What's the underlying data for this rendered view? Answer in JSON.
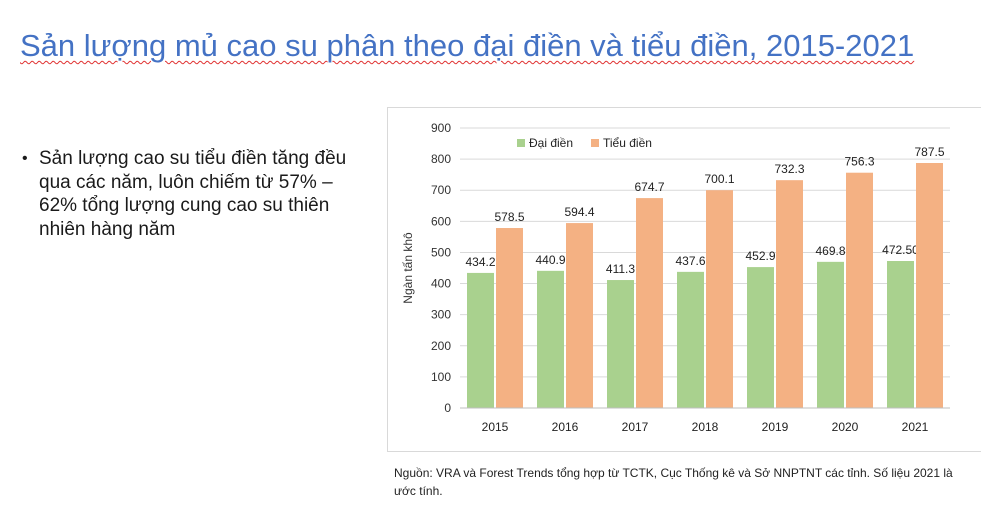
{
  "slide": {
    "title": "Sản lượng mủ cao su phân theo đại điền và tiểu điền, 2015-2021",
    "bullets": [
      "Sản lượng cao su tiểu điền tăng đều qua các năm, luôn chiếm từ 57% – 62% tổng lượng cung cao su thiên nhiên hàng năm"
    ],
    "source_note": "Nguồn: VRA và Forest Trends tổng hợp từ TCTK, Cục Thống kê và Sở NNPTNT các tỉnh. Số liệu 2021 là ước tính.",
    "colors": {
      "title": "#4472c4",
      "spellcheck_underline": "#e03030"
    }
  },
  "chart_data": {
    "type": "bar",
    "categories": [
      "2015",
      "2016",
      "2017",
      "2018",
      "2019",
      "2020",
      "2021"
    ],
    "series": [
      {
        "name": "Đại điền",
        "color": "#a9d18e",
        "values": [
          434.2,
          440.9,
          411.3,
          437.6,
          452.9,
          469.8,
          472.5
        ],
        "labels": [
          "434.2",
          "440.9",
          "411.3",
          "437.6",
          "452.9",
          "469.8",
          "472.50"
        ]
      },
      {
        "name": "Tiểu điền",
        "color": "#f4b183",
        "values": [
          578.5,
          594.4,
          674.7,
          700.1,
          732.3,
          756.3,
          787.5
        ],
        "labels": [
          "578.5",
          "594.4",
          "674.7",
          "700.1",
          "732.3",
          "756.3",
          "787.5"
        ]
      }
    ],
    "title": "",
    "xlabel": "",
    "ylabel": "Ngàn tấn khô",
    "ylim": [
      0,
      900
    ],
    "yticks": [
      0,
      100,
      200,
      300,
      400,
      500,
      600,
      700,
      800,
      900
    ],
    "grid": true,
    "legend_position": "top"
  }
}
